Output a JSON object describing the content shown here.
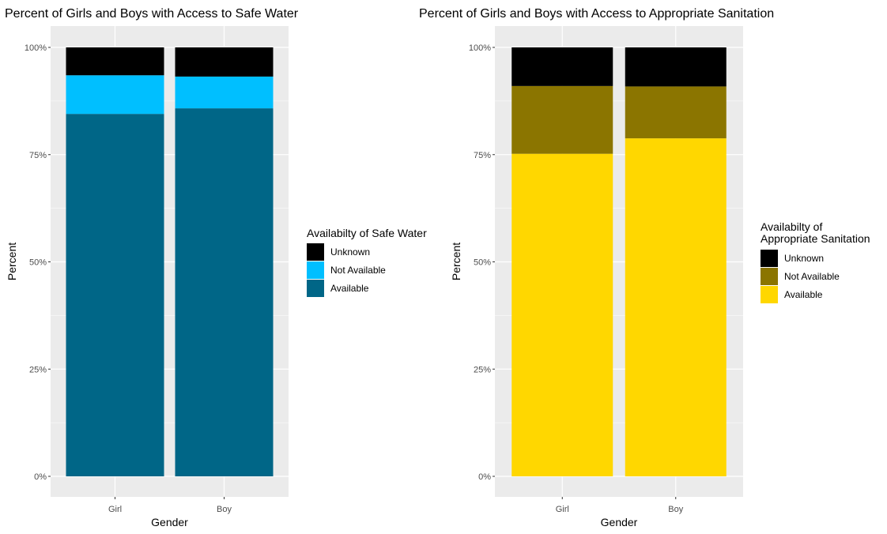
{
  "chart_data": [
    {
      "type": "bar",
      "stacked": true,
      "title": "Percent of Girls and Boys with Access to Safe Water",
      "xlabel": "Gender",
      "ylabel": "Percent",
      "categories": [
        "Girl",
        "Boy"
      ],
      "ylim": [
        0,
        100
      ],
      "yticks": [
        "0%",
        "25%",
        "50%",
        "75%",
        "100%"
      ],
      "grid": true,
      "legend": {
        "title_lines": [
          "Availabilty of Safe Water"
        ],
        "placement": "right",
        "entries": [
          "Unknown",
          "Not Available",
          "Available"
        ]
      },
      "series": [
        {
          "name": "Available",
          "values": [
            84.5,
            85.8
          ],
          "color": "#006687"
        },
        {
          "name": "Not Available",
          "values": [
            9.0,
            7.4
          ],
          "color": "#00BFFF"
        },
        {
          "name": "Unknown",
          "values": [
            6.5,
            6.8
          ],
          "color": "#000000"
        }
      ]
    },
    {
      "type": "bar",
      "stacked": true,
      "title": "Percent of Girls and Boys with Access to Appropriate Sanitation",
      "xlabel": "Gender",
      "ylabel": "Percent",
      "categories": [
        "Girl",
        "Boy"
      ],
      "ylim": [
        0,
        100
      ],
      "yticks": [
        "0%",
        "25%",
        "50%",
        "75%",
        "100%"
      ],
      "grid": true,
      "legend": {
        "title_lines": [
          "Availabilty of",
          "Appropriate Sanitation"
        ],
        "placement": "right",
        "entries": [
          "Unknown",
          "Not Available",
          "Available"
        ]
      },
      "series": [
        {
          "name": "Available",
          "values": [
            75.2,
            78.8
          ],
          "color": "#FFD700"
        },
        {
          "name": "Not Available",
          "values": [
            15.8,
            12.1
          ],
          "color": "#8B7500"
        },
        {
          "name": "Unknown",
          "values": [
            9.0,
            9.1
          ],
          "color": "#000000"
        }
      ]
    }
  ]
}
